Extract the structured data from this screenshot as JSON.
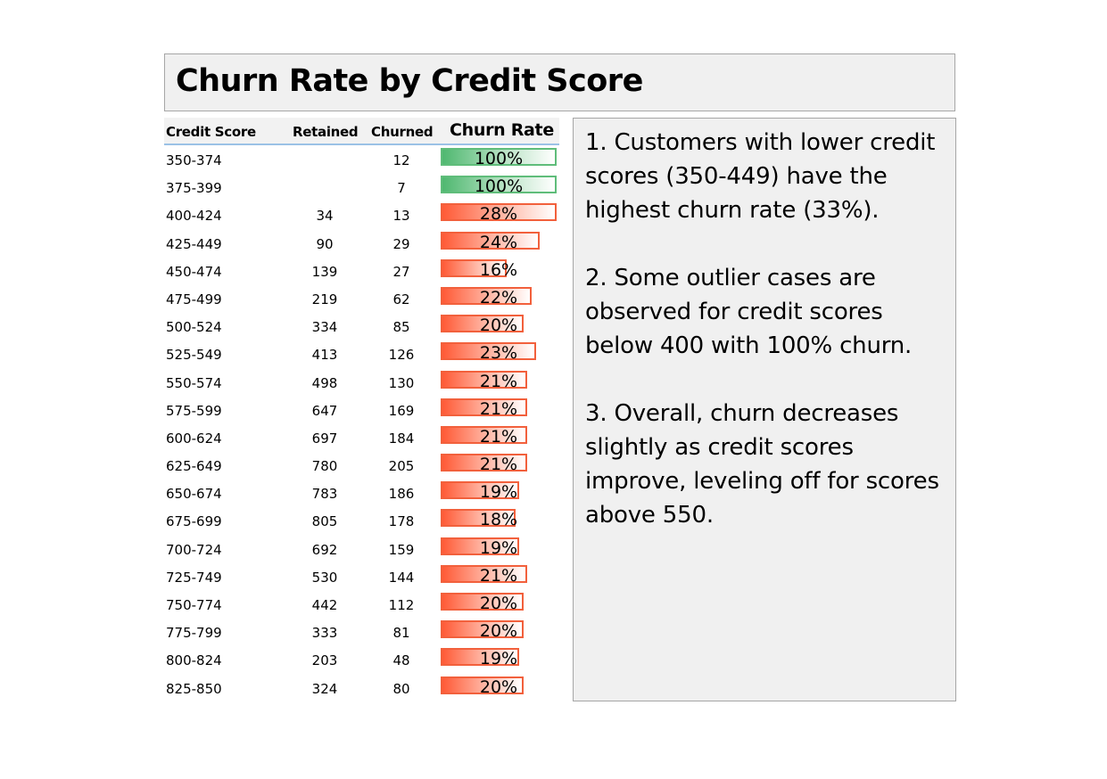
{
  "title": "Churn Rate by Credit Score",
  "table": {
    "headers": {
      "credit_score": "Credit Score",
      "retained": "Retained",
      "churned": "Churned",
      "churn_rate": "Churn Rate"
    },
    "rows": [
      {
        "score": "350-374",
        "retained": "",
        "churned": "12",
        "rate": "100%",
        "rate_value": 1.0,
        "color": "green"
      },
      {
        "score": "375-399",
        "retained": "",
        "churned": "7",
        "rate": "100%",
        "rate_value": 1.0,
        "color": "green"
      },
      {
        "score": "400-424",
        "retained": "34",
        "churned": "13",
        "rate": "28%",
        "rate_value": 0.28,
        "color": "red"
      },
      {
        "score": "425-449",
        "retained": "90",
        "churned": "29",
        "rate": "24%",
        "rate_value": 0.24,
        "color": "red"
      },
      {
        "score": "450-474",
        "retained": "139",
        "churned": "27",
        "rate": "16%",
        "rate_value": 0.16,
        "color": "red"
      },
      {
        "score": "475-499",
        "retained": "219",
        "churned": "62",
        "rate": "22%",
        "rate_value": 0.22,
        "color": "red"
      },
      {
        "score": "500-524",
        "retained": "334",
        "churned": "85",
        "rate": "20%",
        "rate_value": 0.2,
        "color": "red"
      },
      {
        "score": "525-549",
        "retained": "413",
        "churned": "126",
        "rate": "23%",
        "rate_value": 0.23,
        "color": "red"
      },
      {
        "score": "550-574",
        "retained": "498",
        "churned": "130",
        "rate": "21%",
        "rate_value": 0.21,
        "color": "red"
      },
      {
        "score": "575-599",
        "retained": "647",
        "churned": "169",
        "rate": "21%",
        "rate_value": 0.21,
        "color": "red"
      },
      {
        "score": "600-624",
        "retained": "697",
        "churned": "184",
        "rate": "21%",
        "rate_value": 0.21,
        "color": "red"
      },
      {
        "score": "625-649",
        "retained": "780",
        "churned": "205",
        "rate": "21%",
        "rate_value": 0.21,
        "color": "red"
      },
      {
        "score": "650-674",
        "retained": "783",
        "churned": "186",
        "rate": "19%",
        "rate_value": 0.19,
        "color": "red"
      },
      {
        "score": "675-699",
        "retained": "805",
        "churned": "178",
        "rate": "18%",
        "rate_value": 0.18,
        "color": "red"
      },
      {
        "score": "700-724",
        "retained": "692",
        "churned": "159",
        "rate": "19%",
        "rate_value": 0.19,
        "color": "red"
      },
      {
        "score": "725-749",
        "retained": "530",
        "churned": "144",
        "rate": "21%",
        "rate_value": 0.21,
        "color": "red"
      },
      {
        "score": "750-774",
        "retained": "442",
        "churned": "112",
        "rate": "20%",
        "rate_value": 0.2,
        "color": "red"
      },
      {
        "score": "775-799",
        "retained": "333",
        "churned": "81",
        "rate": "20%",
        "rate_value": 0.2,
        "color": "red"
      },
      {
        "score": "800-824",
        "retained": "203",
        "churned": "48",
        "rate": "19%",
        "rate_value": 0.19,
        "color": "red"
      },
      {
        "score": "825-850",
        "retained": "324",
        "churned": "80",
        "rate": "20%",
        "rate_value": 0.2,
        "color": "red"
      }
    ]
  },
  "notes": [
    "1. Customers with lower credit scores (350-449) have the highest churn rate (33%).",
    "2. Some outlier cases are observed for credit scores below 400 with 100% churn.",
    "3. Overall, churn decreases slightly as credit scores improve, leveling off for scores above 550."
  ],
  "colors": {
    "panel_bg": "#f0f0f0",
    "bar_red": "#ff5a36",
    "bar_green": "#4fb870",
    "header_rule": "#9bc2e6"
  }
}
